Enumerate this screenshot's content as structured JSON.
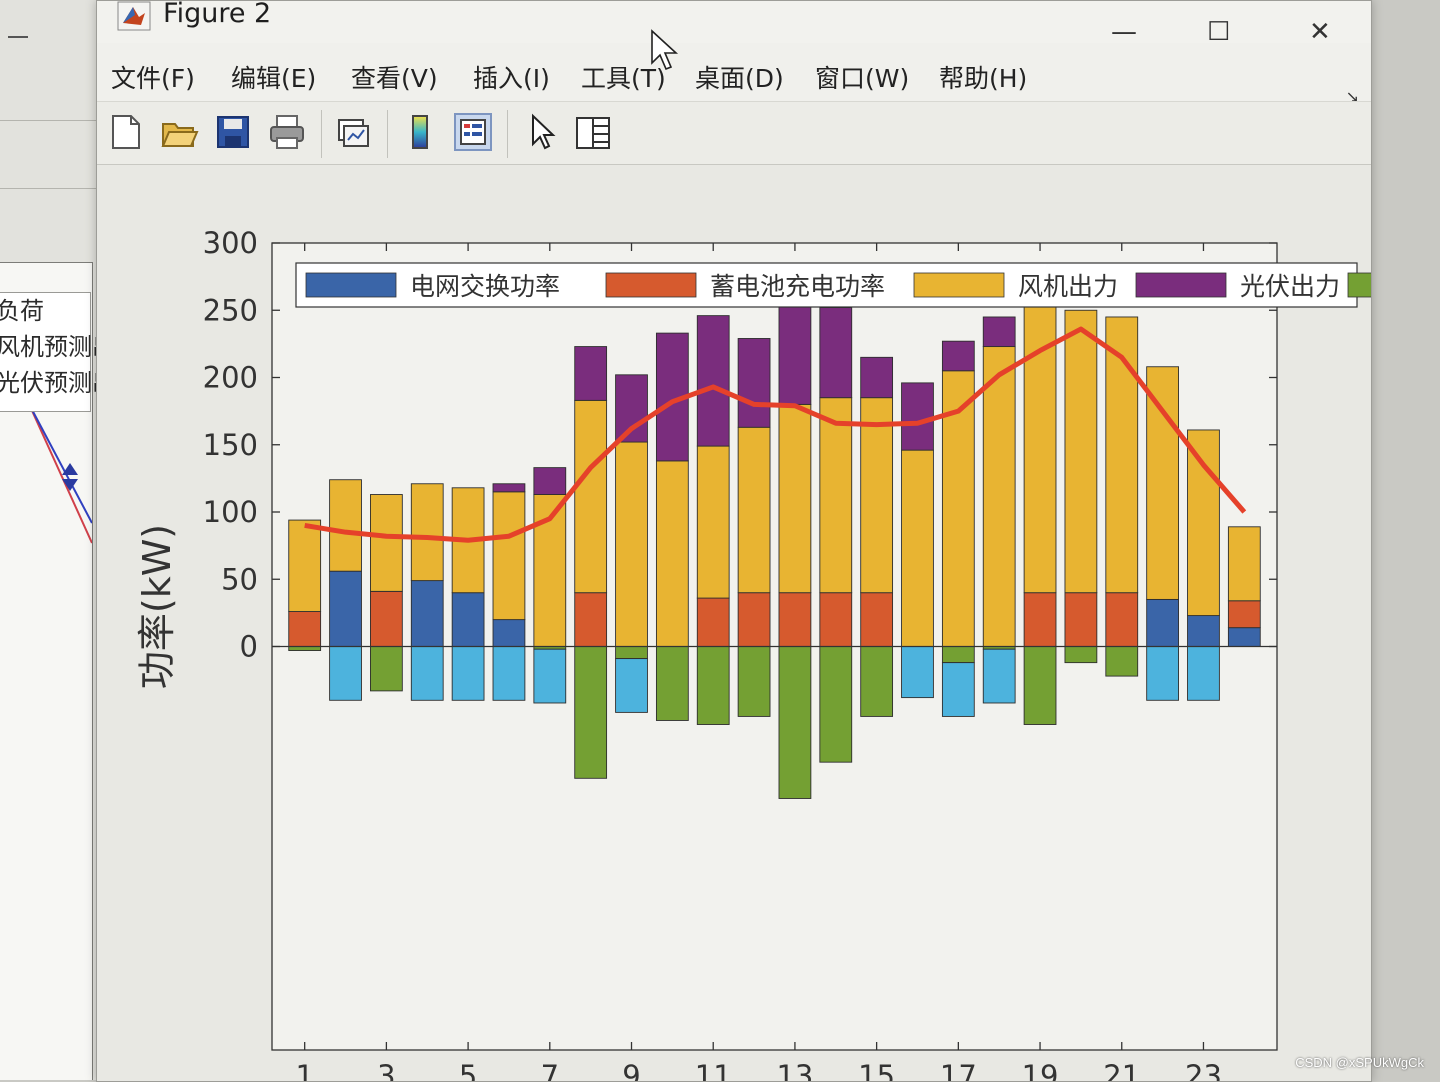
{
  "background_window": {
    "legend_items": [
      "负荷",
      "风机预测出",
      "光伏预测出"
    ]
  },
  "window": {
    "title": "Figure 2",
    "controls": {
      "minimize": "—",
      "maximize": "☐",
      "close": "✕"
    }
  },
  "menu": [
    "文件(F)",
    "编辑(E)",
    "查看(V)",
    "插入(I)",
    "工具(T)",
    "桌面(D)",
    "窗口(W)",
    "帮助(H)"
  ],
  "toolbar": [
    {
      "name": "new-figure-icon"
    },
    {
      "name": "open-file-icon"
    },
    {
      "name": "save-icon"
    },
    {
      "name": "print-icon"
    },
    {
      "name": "link-plot-icon"
    },
    {
      "name": "colorbar-icon"
    },
    {
      "name": "legend-icon"
    },
    {
      "name": "edit-plot-icon"
    },
    {
      "name": "property-inspector-icon"
    }
  ],
  "chart_data": {
    "type": "bar",
    "stacked": true,
    "ylabel": "功率(kW)",
    "xlabel": "",
    "ylim": [
      -300,
      300
    ],
    "yticks": [
      0,
      50,
      100,
      150,
      200,
      250,
      300
    ],
    "xticks": [
      1,
      3,
      5,
      7,
      9,
      11,
      13,
      15,
      17,
      19,
      21,
      23
    ],
    "x": [
      1,
      2,
      3,
      4,
      5,
      6,
      7,
      8,
      9,
      10,
      11,
      12,
      13,
      14,
      15,
      16,
      17,
      18,
      19,
      20,
      21,
      22,
      23,
      24
    ],
    "legend_position": "top",
    "colors": {
      "grid_pos": "#3a65a8",
      "grid_neg": "#4db3dd",
      "battery": "#d65a2e",
      "wind": "#e8b432",
      "pv": "#7a2d7d",
      "green": "#74a033",
      "line": "#e5412a"
    },
    "series": [
      {
        "name": "电网交换功率",
        "color_key": "grid_pos",
        "values": [
          0,
          56,
          0,
          49,
          40,
          20,
          0,
          0,
          0,
          0,
          0,
          0,
          0,
          0,
          0,
          0,
          0,
          0,
          0,
          0,
          0,
          35,
          23,
          14
        ]
      },
      {
        "name": "蓄电池充电功率",
        "color_key": "battery",
        "values": [
          26,
          0,
          41,
          0,
          0,
          0,
          0,
          40,
          0,
          0,
          36,
          40,
          40,
          40,
          40,
          0,
          0,
          0,
          40,
          40,
          40,
          0,
          0,
          20
        ]
      },
      {
        "name": "风机出力",
        "color_key": "wind",
        "values": [
          68,
          68,
          72,
          72,
          78,
          95,
          113,
          143,
          152,
          138,
          113,
          123,
          140,
          145,
          145,
          146,
          205,
          223,
          230,
          210,
          205,
          173,
          138,
          55
        ]
      },
      {
        "name": "光伏出力",
        "color_key": "pv",
        "values": [
          0,
          0,
          0,
          0,
          0,
          6,
          20,
          40,
          50,
          95,
          97,
          66,
          105,
          67,
          30,
          50,
          22,
          22,
          0,
          0,
          0,
          0,
          0,
          0
        ]
      },
      {
        "name": "",
        "color_key": "green",
        "values": [
          -3,
          0,
          -33,
          0,
          0,
          0,
          -2,
          -98,
          -9,
          -55,
          -58,
          -52,
          -113,
          -86,
          -52,
          0,
          -12,
          -2,
          -58,
          -12,
          -22,
          0,
          0,
          0
        ]
      },
      {
        "name": "",
        "color_key": "grid_neg",
        "values": [
          0,
          -40,
          0,
          -40,
          -40,
          -40,
          -40,
          0,
          -40,
          0,
          0,
          0,
          0,
          0,
          0,
          -38,
          -40,
          -40,
          0,
          0,
          0,
          -40,
          -40,
          0
        ]
      }
    ],
    "line": {
      "color_key": "line",
      "values": [
        90,
        85,
        82,
        81,
        79,
        82,
        95,
        133,
        162,
        182,
        193,
        180,
        179,
        166,
        165,
        166,
        175,
        202,
        220,
        236,
        215,
        175,
        135,
        100
      ]
    }
  },
  "watermark": "CSDN @xSPUkWgCk"
}
